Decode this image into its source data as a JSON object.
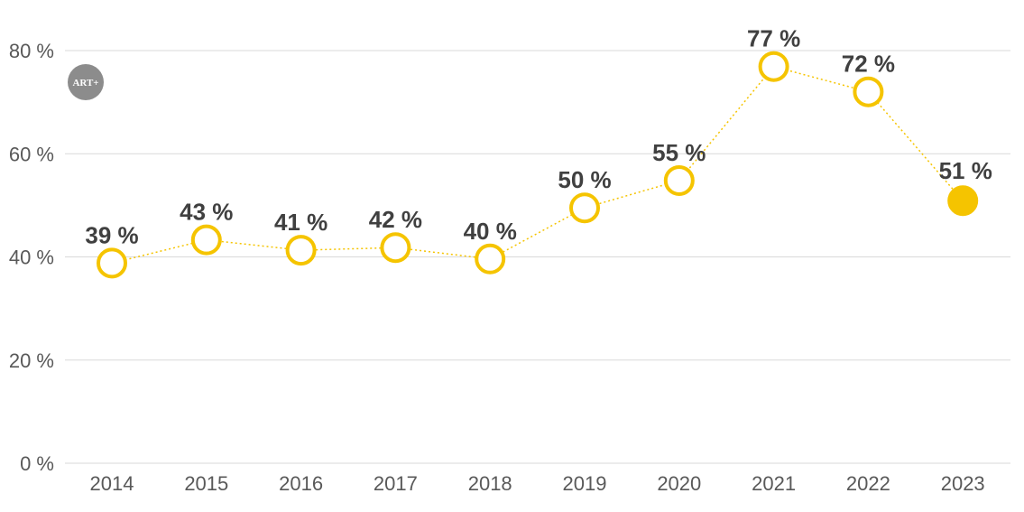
{
  "logo": {
    "text": "ART+",
    "color": "#8c8c8c"
  },
  "chart_data": {
    "type": "line",
    "title": "",
    "xlabel": "",
    "ylabel": "",
    "categories": [
      "2014",
      "2015",
      "2016",
      "2017",
      "2018",
      "2019",
      "2020",
      "2021",
      "2022",
      "2023"
    ],
    "series": [
      {
        "values": [
          39,
          43,
          41,
          42,
          40,
          50,
          55,
          77,
          72,
          51
        ],
        "plotted_values": [
          38.8,
          43.3,
          41.3,
          41.8,
          39.6,
          49.5,
          54.8,
          76.9,
          72.0,
          50.9
        ],
        "data_labels": [
          "39 %",
          "43 %",
          "41 %",
          "42 %",
          "40 %",
          "50 %",
          "55 %",
          "77 %",
          "72 %",
          "51 %"
        ],
        "color": "#f5c400",
        "line_style": "dotted",
        "marker": "open-circle",
        "last_marker": "filled-circle"
      }
    ],
    "y_ticks": [
      0,
      20,
      40,
      60,
      80
    ],
    "y_tick_labels": [
      "0 %",
      "20 %",
      "40 %",
      "60 %",
      "80 %"
    ],
    "ylim": [
      0,
      80
    ],
    "grid": true,
    "legend": "none"
  }
}
